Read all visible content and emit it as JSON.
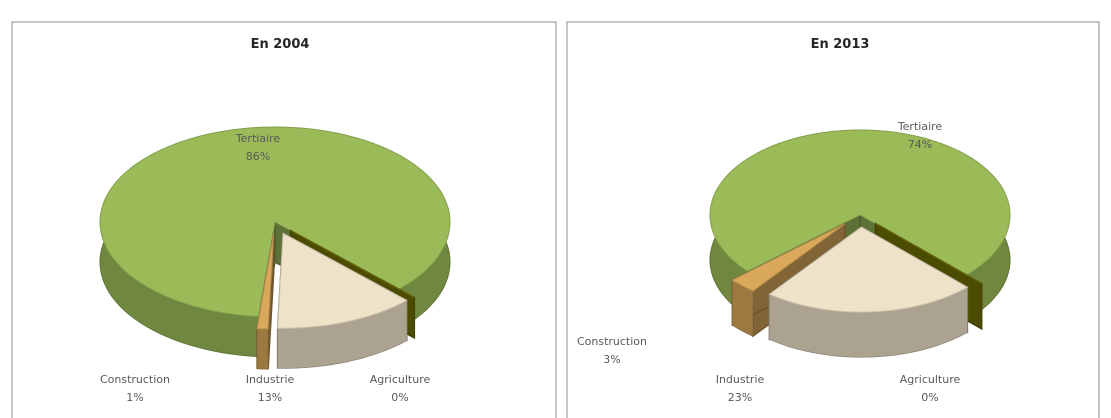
{
  "chart_data": [
    {
      "type": "pie",
      "title": "En 2004",
      "categories": [
        "Agriculture",
        "Industrie",
        "Construction",
        "Tertiaire"
      ],
      "values": [
        0,
        13,
        1,
        86
      ],
      "value_labels": [
        "0%",
        "13%",
        "1%",
        "86%"
      ],
      "colors": [
        "#7f7f00",
        "#eee3c8",
        "#d9a85a",
        "#9bbb59"
      ]
    },
    {
      "type": "pie",
      "title": "En 2013",
      "categories": [
        "Agriculture",
        "Industrie",
        "Construction",
        "Tertiaire"
      ],
      "values": [
        0,
        23,
        3,
        74
      ],
      "value_labels": [
        "0%",
        "23%",
        "3%",
        "74%"
      ],
      "colors": [
        "#7f7f00",
        "#eee3c8",
        "#d9a85a",
        "#9bbb59"
      ]
    }
  ]
}
